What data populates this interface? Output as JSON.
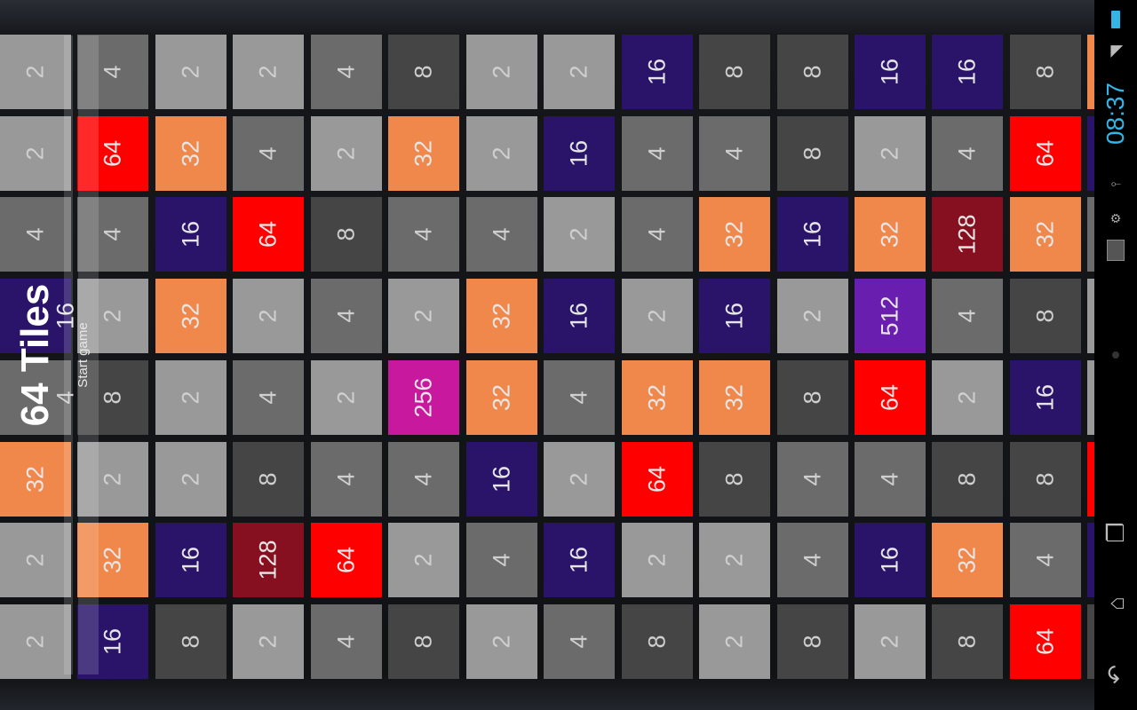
{
  "app": {
    "title": "64 Tiles",
    "start_label": "Start game"
  },
  "status_bar": {
    "clock": "08:37",
    "icons": [
      "battery-icon",
      "wifi-icon",
      "usb-icon",
      "debug-icon",
      "app-notification-icon"
    ]
  },
  "nav_bar": {
    "buttons": [
      "recent-apps-button",
      "home-button",
      "back-button"
    ]
  },
  "tile_colors": {
    "2": "#999999",
    "4": "#6b6b6b",
    "8": "#454545",
    "16": "#29146a",
    "32": "#f0884b",
    "64": "#ff0000",
    "128": "#86101f",
    "256": "#c8189e",
    "512": "#6a1eb0"
  },
  "grid": [
    [
      2,
      4,
      2,
      2,
      4,
      8,
      2,
      2,
      16,
      8,
      8,
      16,
      16,
      8
    ],
    [
      2,
      64,
      32,
      4,
      2,
      32,
      2,
      16,
      4,
      4,
      8,
      2,
      4,
      64
    ],
    [
      4,
      4,
      16,
      64,
      8,
      4,
      4,
      2,
      4,
      32,
      16,
      32,
      128,
      32
    ],
    [
      16,
      2,
      32,
      2,
      4,
      2,
      32,
      16,
      2,
      16,
      2,
      512,
      4,
      8
    ],
    [
      4,
      8,
      2,
      4,
      2,
      256,
      32,
      4,
      32,
      32,
      8,
      64,
      2,
      16
    ],
    [
      32,
      2,
      2,
      8,
      4,
      4,
      16,
      2,
      64,
      8,
      4,
      4,
      8,
      8
    ],
    [
      2,
      32,
      16,
      128,
      64,
      2,
      4,
      16,
      2,
      2,
      4,
      16,
      32,
      4
    ],
    [
      2,
      16,
      8,
      2,
      4,
      8,
      2,
      4,
      8,
      2,
      8,
      2,
      8,
      64
    ]
  ],
  "partial_column_colors": [
    "#f0884b",
    "#29146a",
    "#6b6b6b",
    "#999999",
    "#999999",
    "#ff0000",
    "#29146a",
    "#454545"
  ]
}
